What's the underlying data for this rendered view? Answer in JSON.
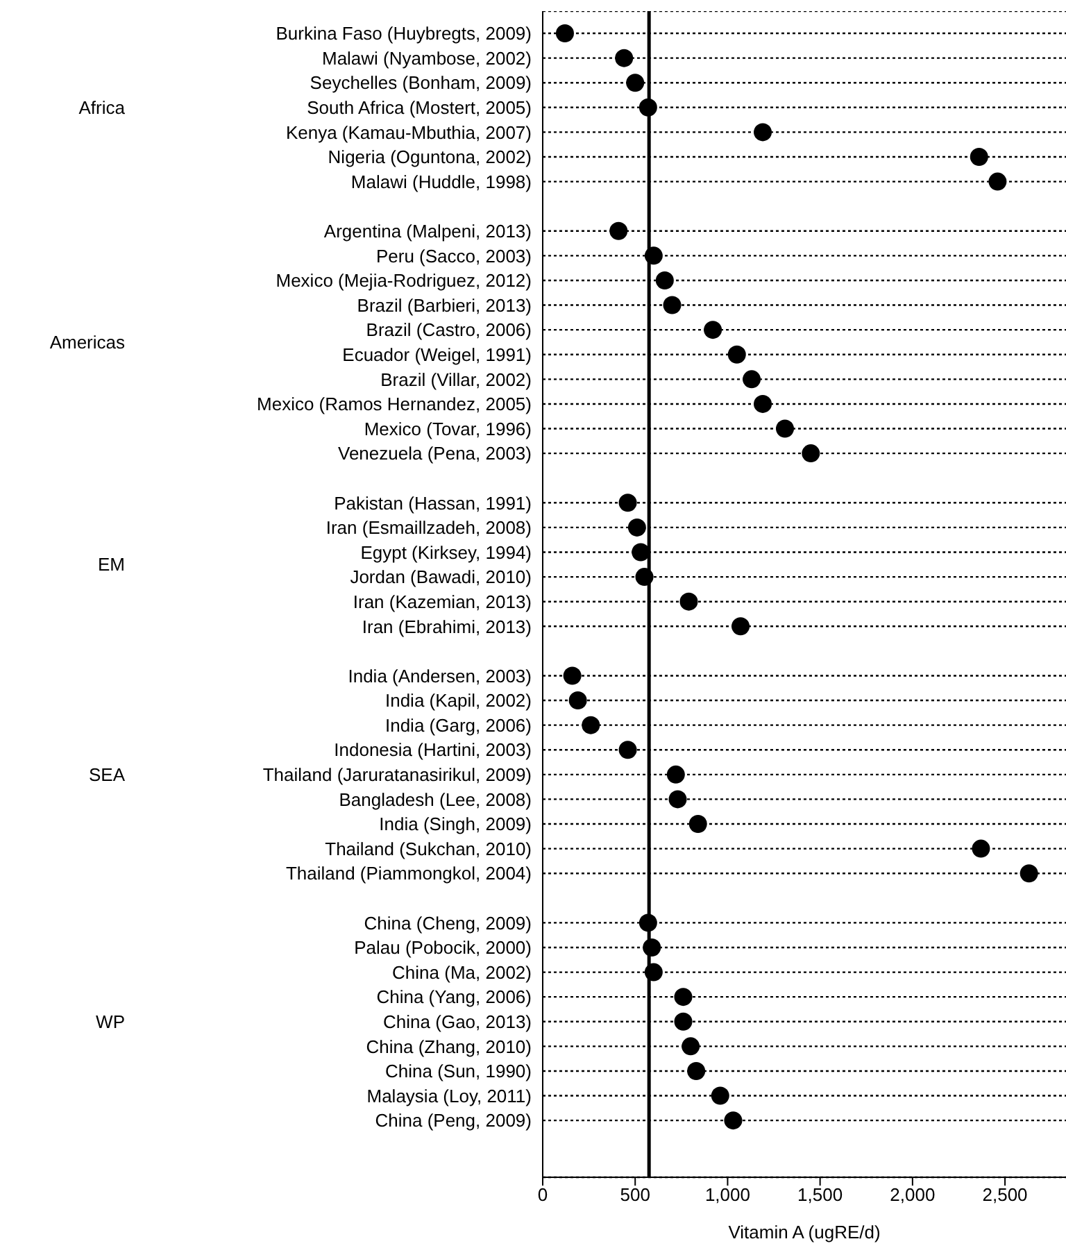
{
  "chart_data": {
    "type": "scatter",
    "orientation": "horizontal",
    "xlabel": "Vitamin A (ugRE/d)",
    "categories": [
      "Burkina Faso (Huybregts, 2009)",
      "Malawi (Nyambose, 2002)",
      "Seychelles (Bonham, 2009)",
      "South Africa (Mostert, 2005)",
      "Kenya (Kamau-Mbuthia, 2007)",
      "Nigeria (Oguntona, 2002)",
      "Malawi (Huddle, 1998)",
      null,
      "Argentina (Malpeni, 2013)",
      "Peru (Sacco, 2003)",
      "Mexico (Mejia-Rodriguez, 2012)",
      "Brazil (Barbieri, 2013)",
      "Brazil (Castro, 2006)",
      "Ecuador (Weigel, 1991)",
      "Brazil (Villar, 2002)",
      "Mexico (Ramos Hernandez, 2005)",
      "Mexico (Tovar, 1996)",
      "Venezuela (Pena, 2003)",
      null,
      "Pakistan (Hassan, 1991)",
      "Iran (Esmaillzadeh, 2008)",
      "Egypt (Kirksey, 1994)",
      "Jordan (Bawadi, 2010)",
      "Iran (Kazemian, 2013)",
      "Iran (Ebrahimi, 2013)",
      null,
      "India (Andersen, 2003)",
      "India (Kapil, 2002)",
      "India (Garg, 2006)",
      "Indonesia (Hartini, 2003)",
      "Thailand (Jaruratanasirikul, 2009)",
      "Bangladesh (Lee, 2008)",
      "India (Singh, 2009)",
      "Thailand (Sukchan, 2010)",
      "Thailand (Piammongkol, 2004)",
      null,
      "China (Cheng, 2009)",
      "Palau (Pobocik, 2000)",
      "China (Ma, 2002)",
      "China (Yang, 2006)",
      "China (Gao, 2013)",
      "China (Zhang, 2010)",
      "China (Sun, 1990)",
      "Malaysia (Loy, 2011)",
      "China (Peng, 2009)"
    ],
    "values": [
      120,
      440,
      500,
      570,
      1190,
      2360,
      2460,
      null,
      410,
      600,
      660,
      700,
      920,
      1050,
      1130,
      1190,
      1310,
      1450,
      null,
      460,
      510,
      530,
      550,
      790,
      1070,
      null,
      160,
      190,
      260,
      460,
      720,
      730,
      840,
      2370,
      2630,
      null,
      570,
      590,
      600,
      760,
      760,
      800,
      830,
      960,
      1030
    ],
    "color": "#000000",
    "marker": "circle",
    "xlim": [
      0,
      2830
    ],
    "xticks": [
      0,
      500,
      {
        "value": 1000,
        "label": "1,000"
      },
      {
        "value": 1500,
        "label": "1,500"
      },
      {
        "value": 2000,
        "label": "2,000"
      },
      {
        "value": 2500,
        "label": "2,500"
      }
    ],
    "grid": "y",
    "ref_lines": [
      {
        "axis": "x",
        "value": 575,
        "color": "#000000"
      }
    ],
    "annotations": [
      "Africa",
      "Americas",
      "EM",
      "SEA",
      "WP"
    ]
  }
}
